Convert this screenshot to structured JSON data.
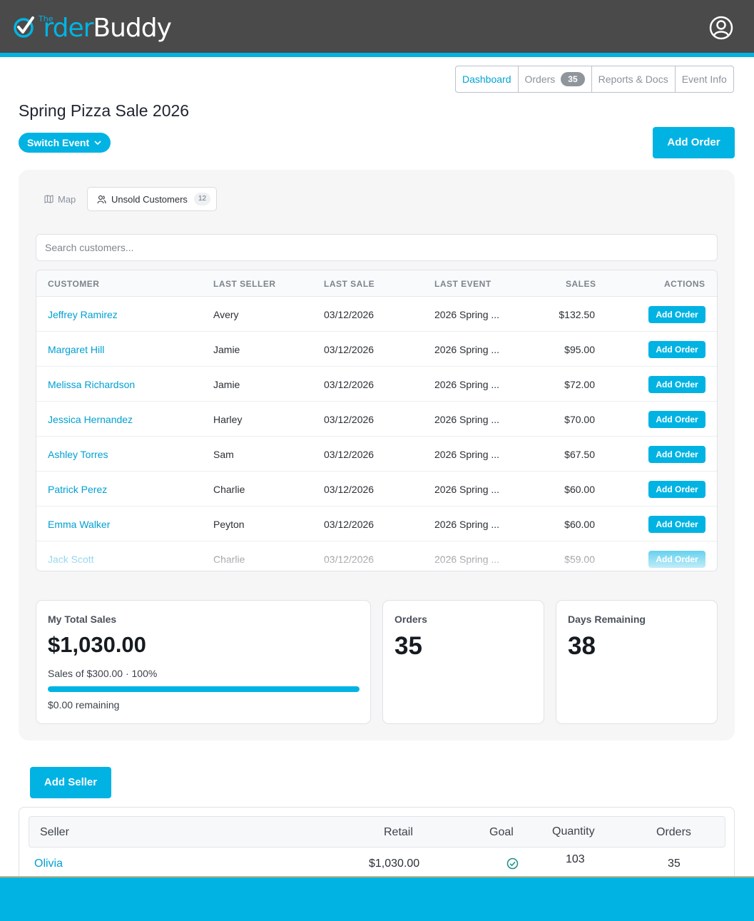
{
  "app": {
    "logo_the": "The",
    "logo_order": "rder",
    "logo_buddy": "Buddy"
  },
  "colors": {
    "accent": "#00b3e3",
    "header": "#4a4a4a",
    "link": "#00a0d2"
  },
  "nav": {
    "tabs": [
      {
        "label": "Dashboard",
        "active": true
      },
      {
        "label": "Orders",
        "badge": "35"
      },
      {
        "label": "Reports & Docs"
      },
      {
        "label": "Event Info"
      }
    ]
  },
  "page": {
    "title": "Spring Pizza Sale 2026",
    "switch_event_label": "Switch Event",
    "add_order_label": "Add Order"
  },
  "subtabs": {
    "map_label": "Map",
    "unsold_label": "Unsold Customers",
    "unsold_count": "12"
  },
  "search": {
    "placeholder": "Search customers..."
  },
  "customers_table": {
    "headers": [
      "CUSTOMER",
      "LAST SELLER",
      "LAST SALE",
      "LAST EVENT",
      "SALES",
      "ACTIONS"
    ],
    "action_label": "Add Order",
    "rows": [
      {
        "customer": "Jeffrey Ramirez",
        "seller": "Avery",
        "sale": "03/12/2026",
        "event": "2026 Spring ...",
        "sales": "$132.50"
      },
      {
        "customer": "Margaret Hill",
        "seller": "Jamie",
        "sale": "03/12/2026",
        "event": "2026 Spring ...",
        "sales": "$95.00"
      },
      {
        "customer": "Melissa Richardson",
        "seller": "Jamie",
        "sale": "03/12/2026",
        "event": "2026 Spring ...",
        "sales": "$72.00"
      },
      {
        "customer": "Jessica Hernandez",
        "seller": "Harley",
        "sale": "03/12/2026",
        "event": "2026 Spring ...",
        "sales": "$70.00"
      },
      {
        "customer": "Ashley Torres",
        "seller": "Sam",
        "sale": "03/12/2026",
        "event": "2026 Spring ...",
        "sales": "$67.50"
      },
      {
        "customer": "Patrick Perez",
        "seller": "Charlie",
        "sale": "03/12/2026",
        "event": "2026 Spring ...",
        "sales": "$60.00"
      },
      {
        "customer": "Emma Walker",
        "seller": "Peyton",
        "sale": "03/12/2026",
        "event": "2026 Spring ...",
        "sales": "$60.00"
      },
      {
        "customer": "Jack Scott",
        "seller": "Charlie",
        "sale": "03/12/2026",
        "event": "2026 Spring ...",
        "sales": "$59.00"
      }
    ]
  },
  "stats": {
    "total_sales_label": "My Total Sales",
    "total_sales_value": "$1,030.00",
    "goal_text": "Sales of $300.00 · 100%",
    "goal_progress": 1.0,
    "remaining_text": "$0.00 remaining",
    "orders_label": "Orders",
    "orders_value": "35",
    "days_label": "Days Remaining",
    "days_value": "38"
  },
  "sellers": {
    "add_seller_label": "Add Seller",
    "headers": [
      "Seller",
      "Retail",
      "Goal",
      "Quantity",
      "Orders"
    ],
    "rows": [
      {
        "seller": "Olivia",
        "retail": "$1,030.00",
        "goal_met": true,
        "quantity": "103",
        "orders": "35"
      }
    ]
  }
}
